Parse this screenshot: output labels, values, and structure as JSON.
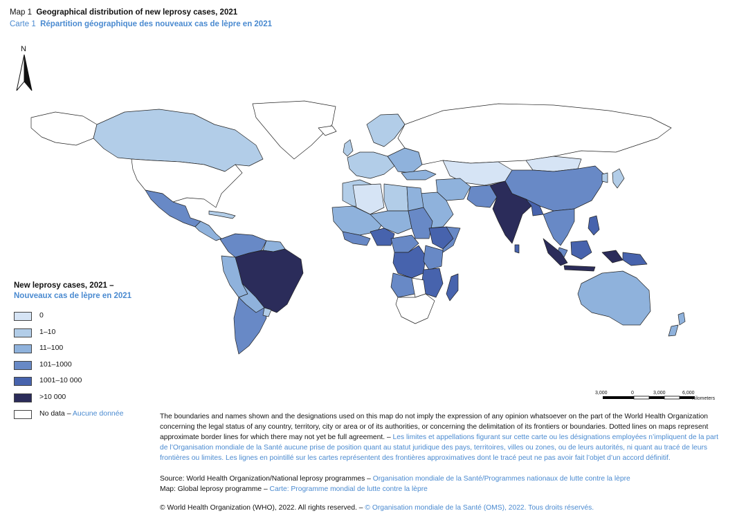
{
  "title": {
    "en_prefix": "Map 1",
    "en_text": "Geographical distribution of new leprosy cases, 2021",
    "fr_prefix": "Carte 1",
    "fr_text": "Répartition géographique des nouveaux cas de lèpre en 2021"
  },
  "north_label": "N",
  "legend": {
    "title_en": "New leprosy cases, 2021 –",
    "title_fr": "Nouveaux cas de lèpre en 2021",
    "items": [
      {
        "label": "0",
        "color": "#d6e4f5"
      },
      {
        "label": "1–10",
        "color": "#b2cde8"
      },
      {
        "label": "11–100",
        "color": "#8fb2dc"
      },
      {
        "label": "101–1000",
        "color": "#6889c6"
      },
      {
        "label": "1001–10 000",
        "color": "#4763ad"
      },
      {
        "label": ">10 000",
        "color": "#2b2c5a"
      }
    ],
    "nodata_en": "No data – ",
    "nodata_fr": "Aucune donnée",
    "nodata_color": "#ffffff"
  },
  "scale": {
    "ticks": [
      "3,000",
      "0",
      "3,000",
      "6,000"
    ],
    "unit": "Kilometers"
  },
  "disclaimer_en": "The boundaries and names shown and the designations used on this map do not imply the expression of any opinion whatsoever on the part of the World Health Organization concerning the legal status of any country, territory, city or area or of its authorities, or concerning the delimitation of its frontiers or boundaries. Dotted lines on maps represent approximate border lines for which there may not yet be full agreement. – ",
  "disclaimer_fr": "Les limites et appellations figurant sur cette carte ou les désignations employées n’impliquent de la part de l’Organisation mondiale de la Santé aucune prise de position quant au statut juridique des pays, territoires, villes ou zones, ou de leurs autorités, ni quant au tracé de leurs frontières ou limites. Les lignes en pointillé sur les cartes représentent des frontières approximatives dont le tracé peut ne pas avoir fait l’objet d’un accord définitif.",
  "source_en": "Source: World Health Organization/National leprosy programmes – ",
  "source_fr": "Organisation mondiale de la Santé/Programmes nationaux de lutte contre la lèpre",
  "mapby_en": "Map: Global leprosy programme – ",
  "mapby_fr": "Carte: Programme mondial de lutte contre la lèpre",
  "copyright_en": "© World Health Organization (WHO), 2022. All rights reserved. – ",
  "copyright_fr": "© Organisation mondiale de la Santé (OMS), 2022. Tous droits réservés."
}
